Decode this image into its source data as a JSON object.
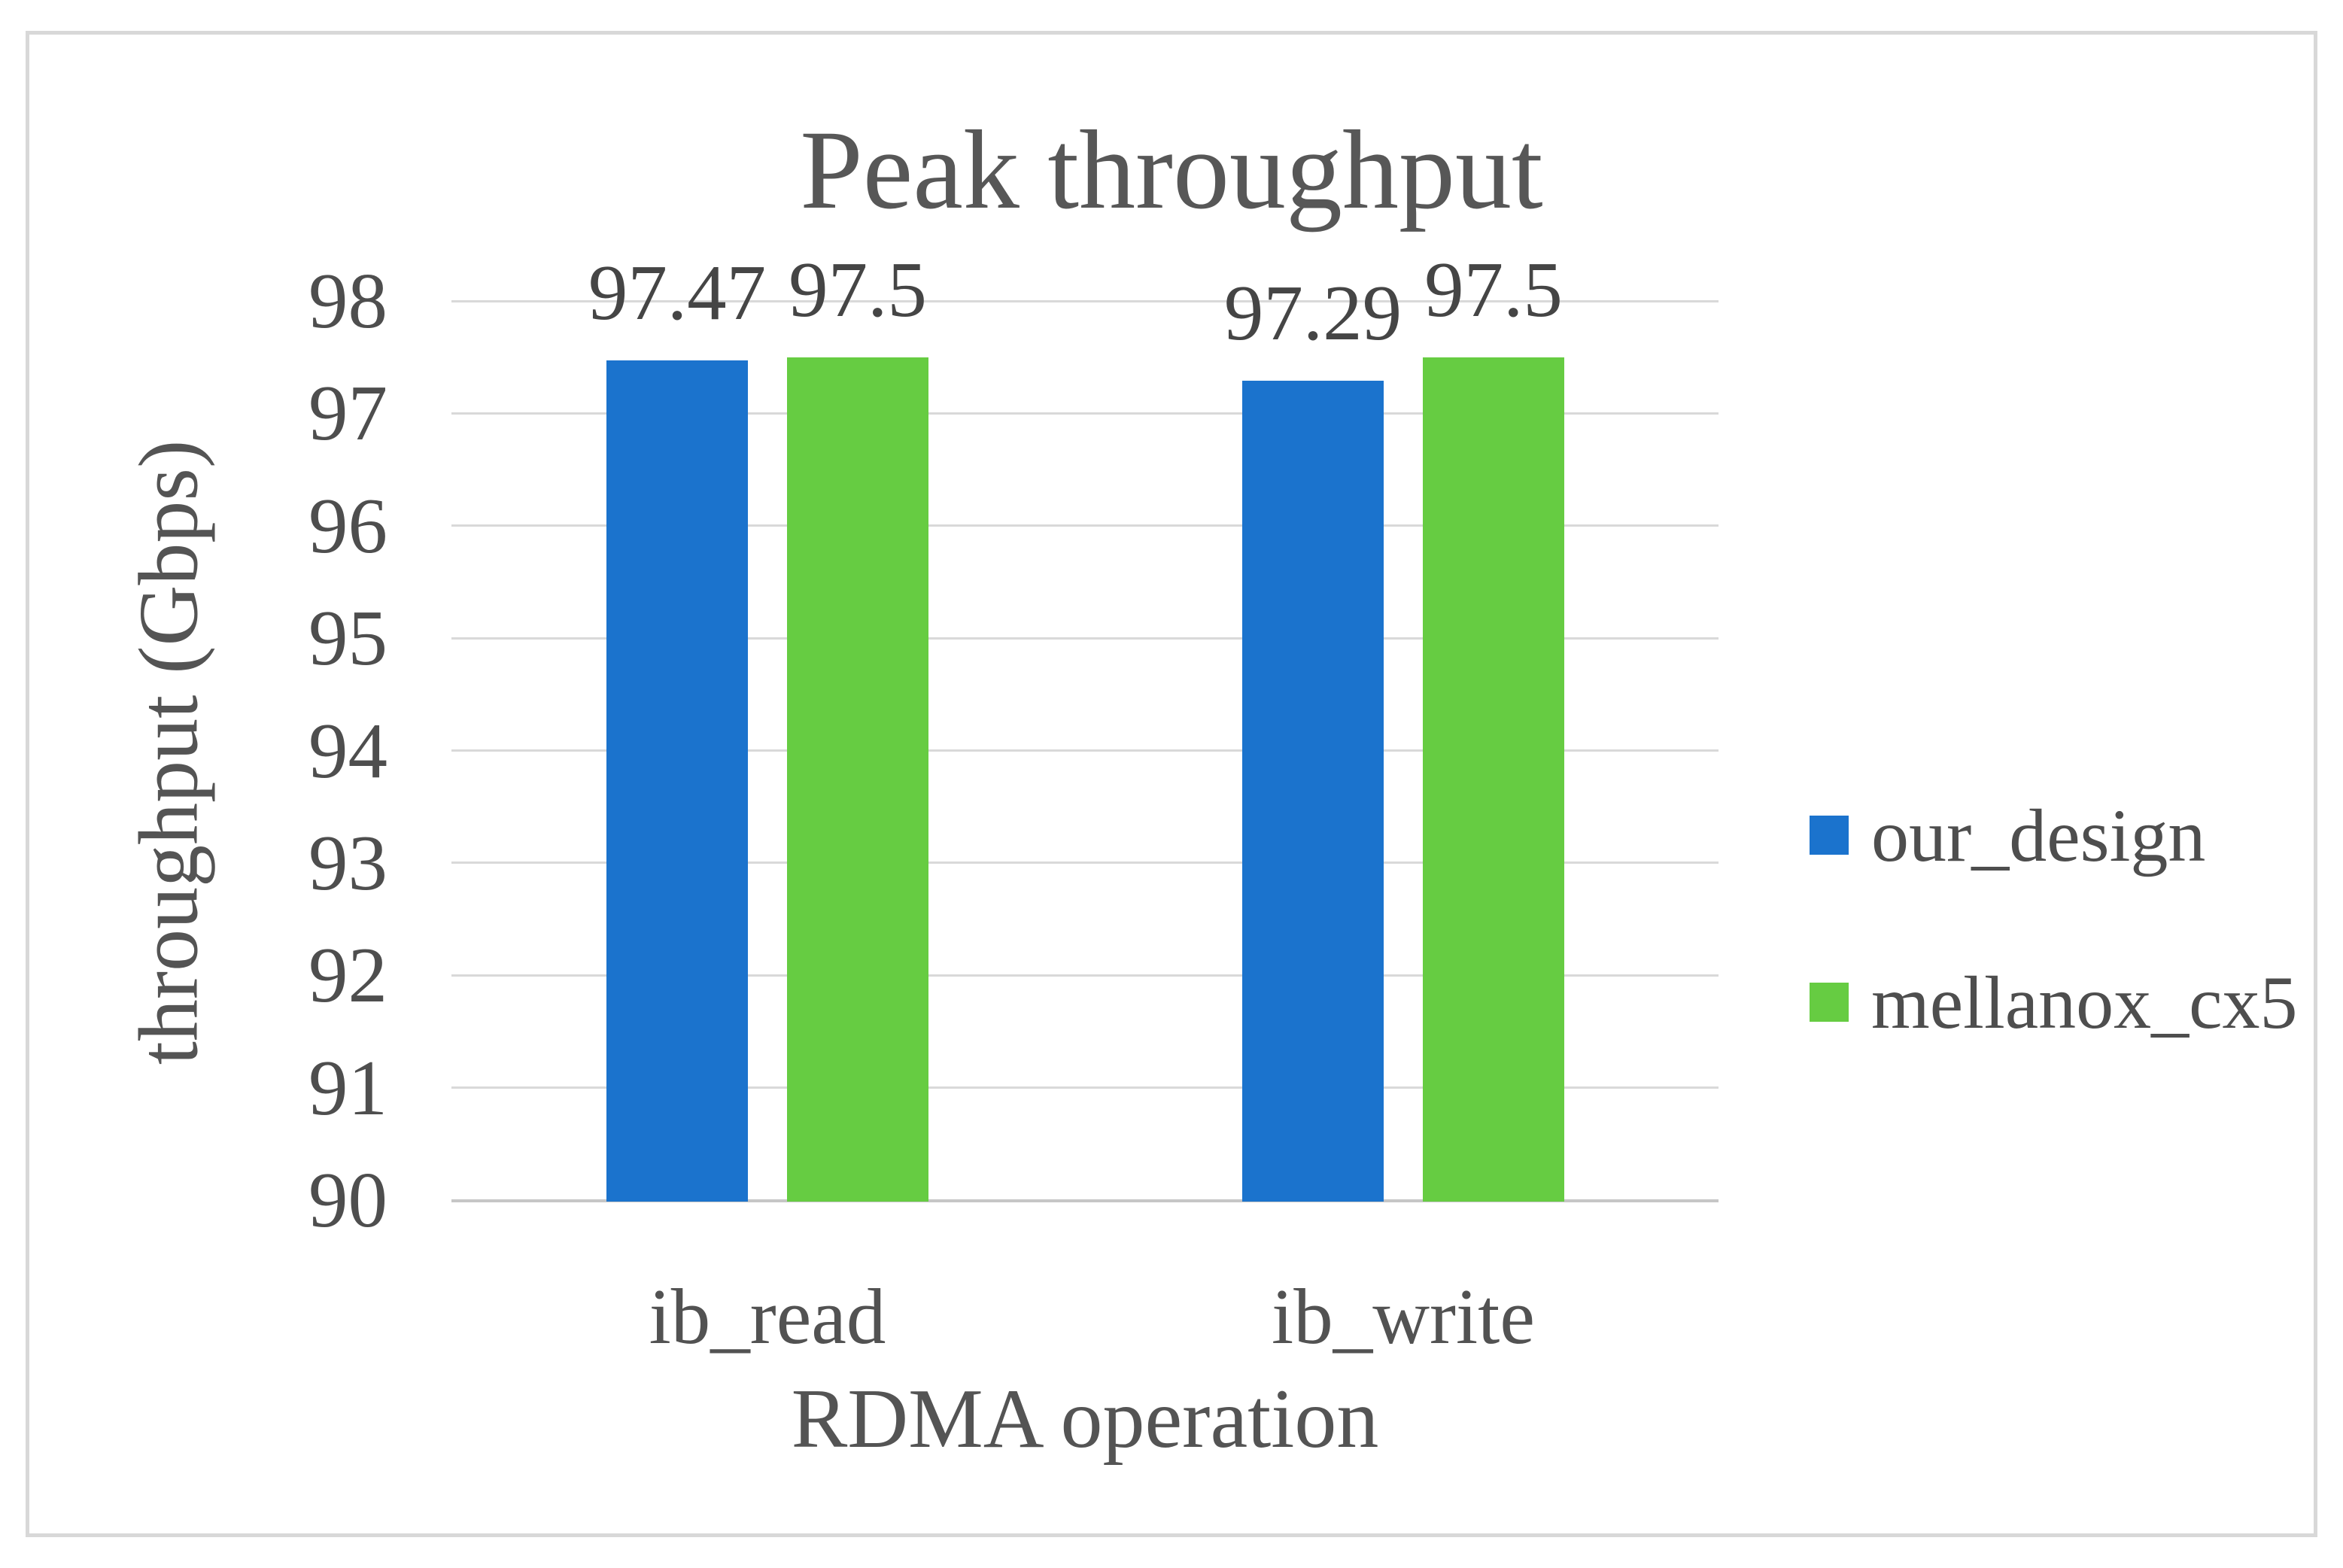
{
  "chart_data": {
    "type": "bar",
    "title": "Peak throughput",
    "xlabel": "RDMA operation",
    "ylabel": "throughput (Gbps)",
    "categories": [
      "ib_read",
      "ib_write"
    ],
    "series": [
      {
        "name": "our_design",
        "color": "#1b73cd",
        "values": [
          97.47,
          97.29
        ],
        "labels": [
          "97.47",
          "97.29"
        ]
      },
      {
        "name": "mellanox_cx5",
        "color": "#66cc42",
        "values": [
          97.5,
          97.5
        ],
        "labels": [
          "97.5",
          "97.5"
        ]
      }
    ],
    "ylim": [
      90,
      98
    ],
    "yticks": [
      90,
      91,
      92,
      93,
      94,
      95,
      96,
      97,
      98
    ],
    "grid": true,
    "data_labels": true,
    "legend_position": "right",
    "colors": {
      "text_dark": "#454545",
      "text_gray": "#545454",
      "gridline": "#d9d9d9",
      "axis_line": "#c6c6c6",
      "frame_border": "#d8d8d8",
      "background": "#ffffff"
    }
  }
}
